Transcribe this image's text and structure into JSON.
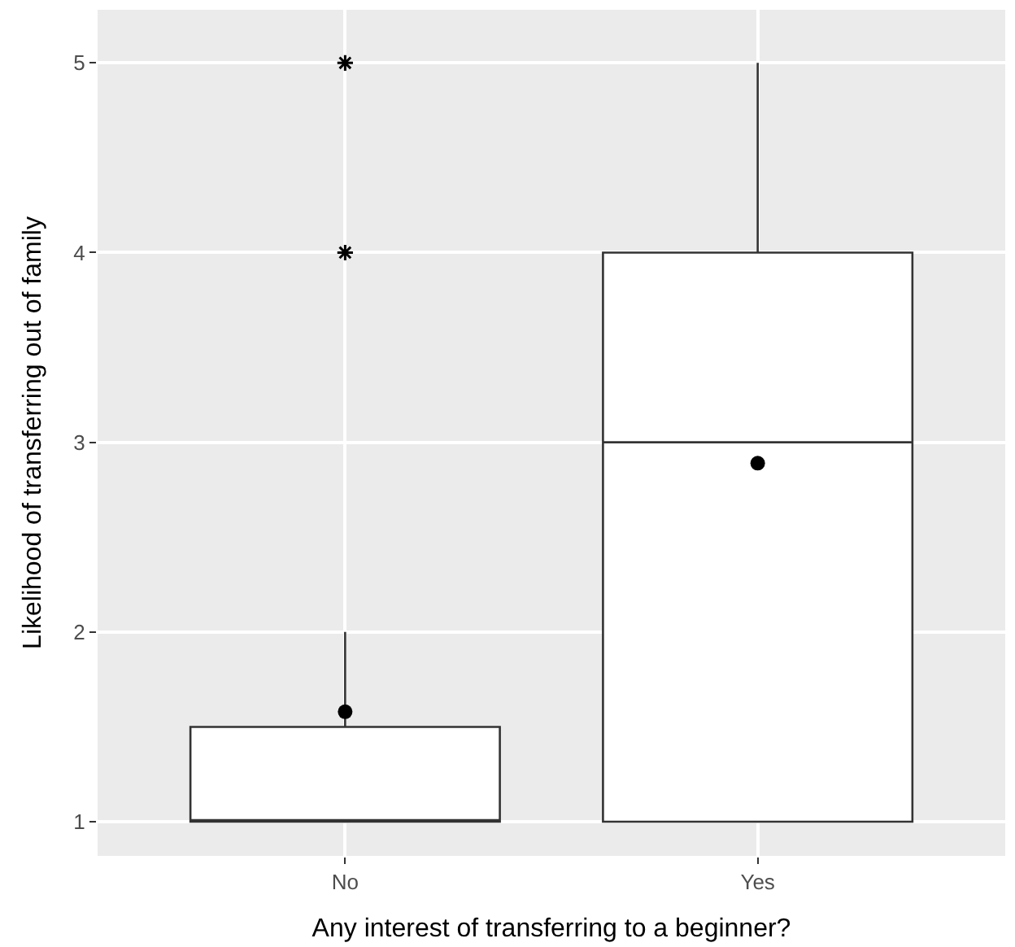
{
  "chart_data": {
    "type": "box",
    "xlabel": "Any interest of transferring to a beginner?",
    "ylabel": "Likelihood of transferring out of family",
    "categories": [
      "No",
      "Yes"
    ],
    "boxes": [
      {
        "low": 1,
        "q1": 1,
        "median": 1,
        "q3": 1.5,
        "high": 2,
        "mean": 1.58,
        "outliers": [
          4,
          5
        ]
      },
      {
        "low": 1,
        "q1": 1,
        "median": 3,
        "q3": 4,
        "high": 5,
        "mean": 2.89
      }
    ],
    "ylim": [
      0.82,
      5.28
    ],
    "yticks": [
      1,
      2,
      3,
      4,
      5
    ],
    "grid": true
  }
}
